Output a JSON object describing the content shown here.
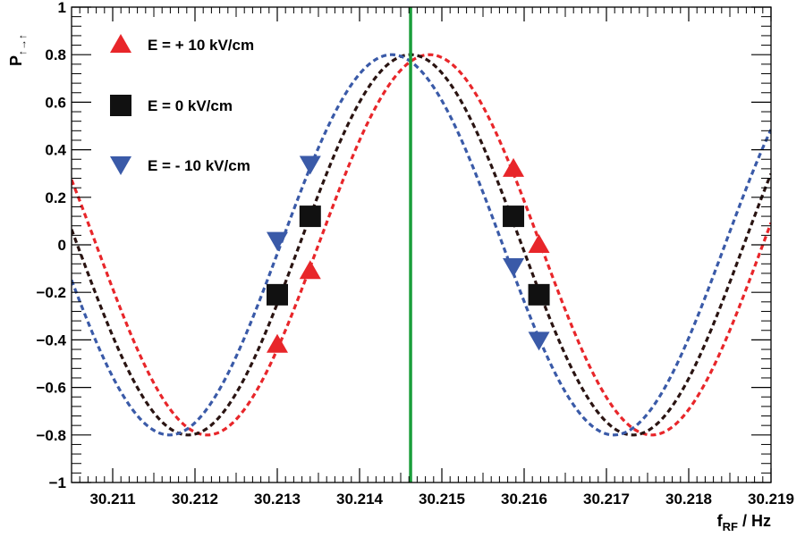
{
  "chart_data": {
    "type": "scatter",
    "xlabel_main": "f",
    "xlabel_sub": "RF",
    "xlabel_unit": " / Hz",
    "ylabel_main": "P",
    "ylabel_sub": "↑→↑",
    "xlim": [
      30.2105,
      30.219
    ],
    "ylim": [
      -1,
      1
    ],
    "x_ticks": [
      "30.211",
      "30.212",
      "30.213",
      "30.214",
      "30.215",
      "30.216",
      "30.217",
      "30.218",
      "30.219"
    ],
    "x_tick_values": [
      30.211,
      30.212,
      30.213,
      30.214,
      30.215,
      30.216,
      30.217,
      30.218,
      30.219
    ],
    "y_ticks": [
      "−1",
      "−0.8",
      "−0.6",
      "−0.4",
      "−0.2",
      "0",
      "0.2",
      "0.4",
      "0.6",
      "0.8",
      "1"
    ],
    "y_tick_values": [
      -1,
      -0.8,
      -0.6,
      -0.4,
      -0.2,
      0,
      0.2,
      0.4,
      0.6,
      0.8,
      1
    ],
    "vertical_line": {
      "x": 30.21462,
      "color": "#1a9e3a"
    },
    "curves": [
      {
        "name": "E = + 10 kV/cm",
        "color": "#e8262a",
        "amplitude": 0.8,
        "center": 30.21485,
        "period": 0.0054,
        "style": "dashed"
      },
      {
        "name": "E = 0 kV/cm",
        "color": "#2a1412",
        "amplitude": 0.8,
        "center": 30.21462,
        "period": 0.0054,
        "style": "dashed"
      },
      {
        "name": "E = - 10 kV/cm",
        "color": "#3a5aa8",
        "amplitude": 0.8,
        "center": 30.21439,
        "period": 0.0054,
        "style": "dashed"
      }
    ],
    "series": [
      {
        "name": "E = + 10 kV/cm",
        "marker": "triangle-up",
        "color": "#e8262a",
        "points": [
          [
            30.213,
            -0.42
          ],
          [
            30.2134,
            -0.11
          ],
          [
            30.21587,
            0.32
          ],
          [
            30.21618,
            0.0
          ]
        ]
      },
      {
        "name": "E = 0 kV/cm",
        "marker": "square",
        "color": "#111111",
        "points": [
          [
            30.213,
            -0.21
          ],
          [
            30.2134,
            0.12
          ],
          [
            30.21587,
            0.12
          ],
          [
            30.21618,
            -0.21
          ]
        ]
      },
      {
        "name": "E = - 10 kV/cm",
        "marker": "triangle-down",
        "color": "#3a5aa8",
        "points": [
          [
            30.213,
            0.02
          ],
          [
            30.2134,
            0.34
          ],
          [
            30.21587,
            -0.09
          ],
          [
            30.21618,
            -0.4
          ]
        ]
      }
    ],
    "legend_position": "top-left",
    "grid": false
  }
}
